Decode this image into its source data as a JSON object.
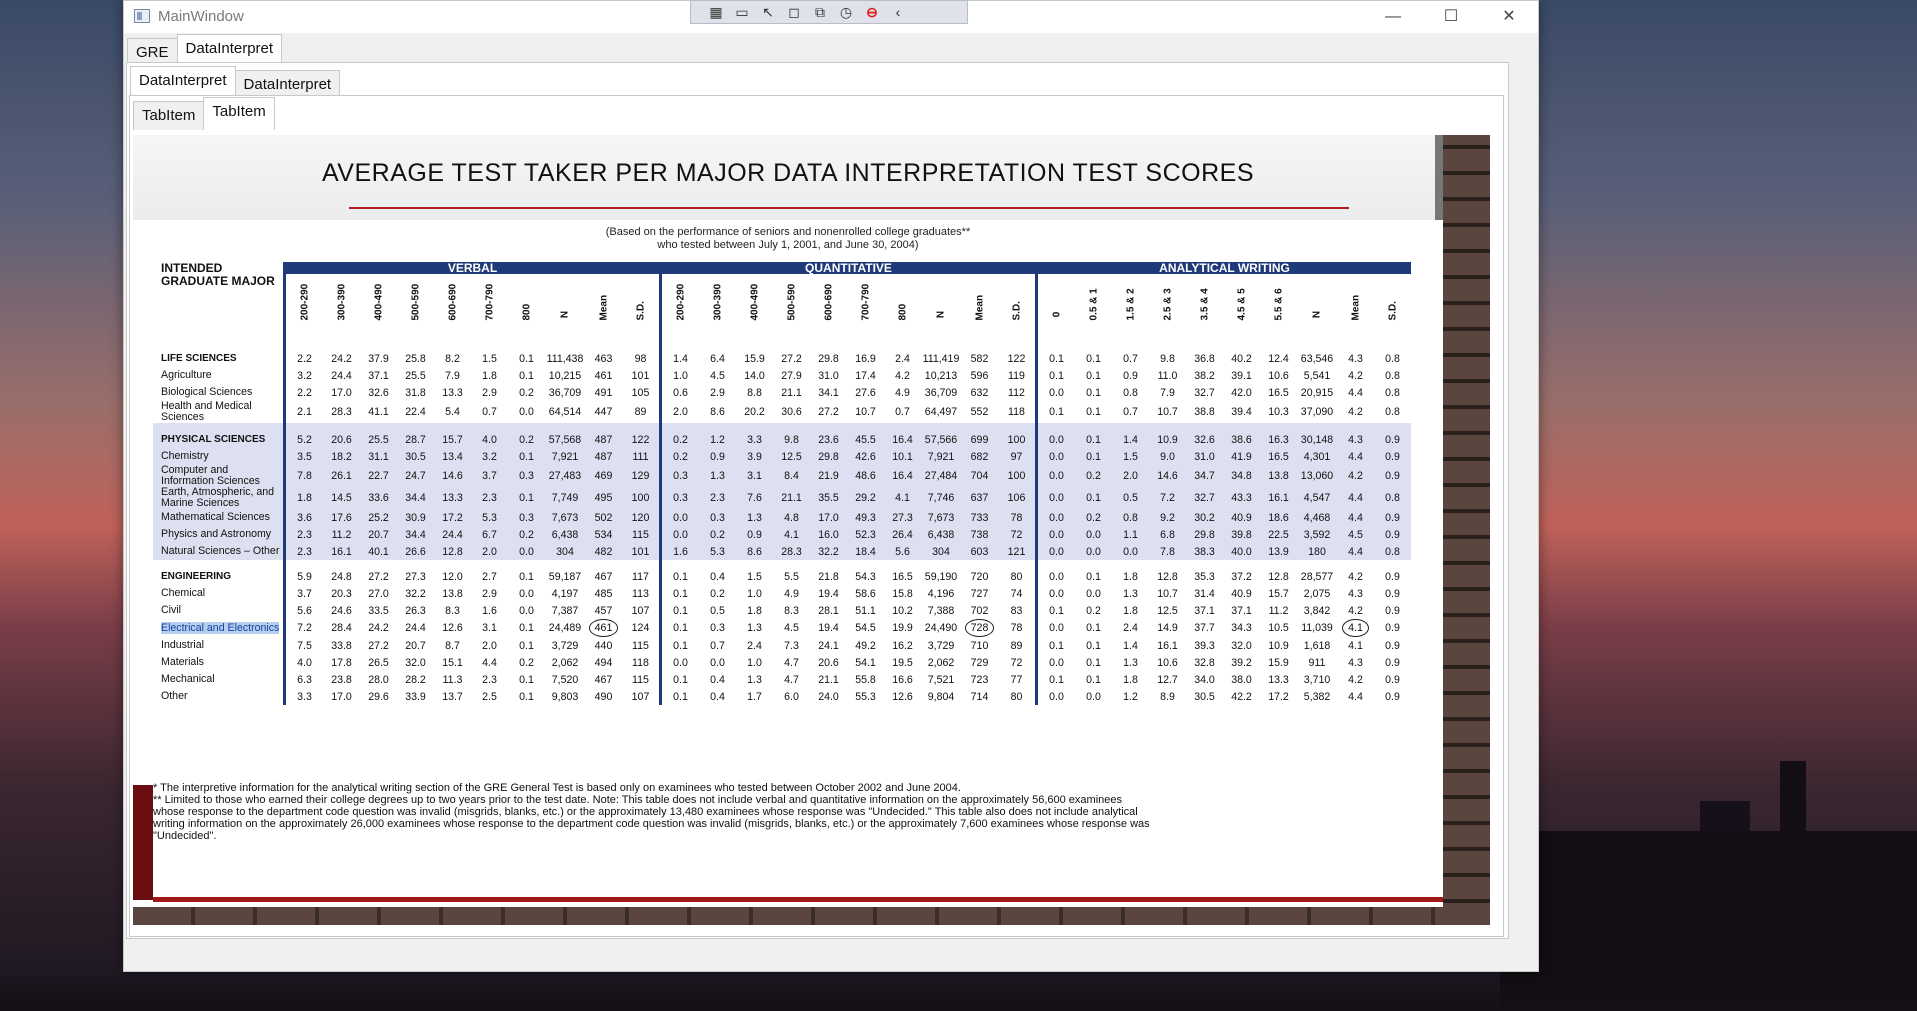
{
  "window": {
    "title": "MainWindow",
    "minimize": "—",
    "maximize": "☐",
    "close": "✕"
  },
  "toolbar": {
    "icons": [
      "capture-icon",
      "video-icon",
      "pointer-icon",
      "select-icon",
      "window-capture-icon",
      "timer-icon",
      "stop-icon",
      "collapse-icon"
    ]
  },
  "tabs_level1": [
    {
      "label": "GRE"
    },
    {
      "label": "DataInterpret"
    }
  ],
  "tabs_level2": [
    {
      "label": "DataInterpret"
    },
    {
      "label": "DataInterpret"
    }
  ],
  "tabs_level3": [
    {
      "label": "TabItem"
    },
    {
      "label": "TabItem"
    }
  ],
  "document": {
    "title": "AVERAGE TEST TAKER PER MAJOR DATA INTERPRETATION TEST SCORES",
    "subtitle_line1": "(Based on the performance of seniors and nonenrolled college graduates**",
    "subtitle_line2": "who tested between July 1, 2001, and June 30, 2004)",
    "major_header": "INTENDED GRADUATE MAJOR",
    "groups": [
      "VERBAL",
      "QUANTITATIVE",
      "ANALYTICAL WRITING"
    ],
    "verbal_cols": [
      "200-290",
      "300-390",
      "400-490",
      "500-590",
      "600-690",
      "700-790",
      "800",
      "N",
      "Mean",
      "S.D."
    ],
    "quant_cols": [
      "200-290",
      "300-390",
      "400-490",
      "500-590",
      "600-690",
      "700-790",
      "800",
      "N",
      "Mean",
      "S.D."
    ],
    "writing_cols": [
      "0",
      "0.5 & 1",
      "1.5 & 2",
      "2.5 & 3",
      "3.5 & 4",
      "4.5 & 5",
      "5.5 & 6",
      "N",
      "Mean",
      "S.D."
    ],
    "sections": [
      {
        "shade": false,
        "rows": [
          {
            "major": "LIFE SCIENCES",
            "bold": true,
            "v": [
              "2.2",
              "24.2",
              "37.9",
              "25.8",
              "8.2",
              "1.5",
              "0.1",
              "111,438",
              "463",
              "98"
            ],
            "q": [
              "1.4",
              "6.4",
              "15.9",
              "27.2",
              "29.8",
              "16.9",
              "2.4",
              "111,419",
              "582",
              "122"
            ],
            "w": [
              "0.1",
              "0.1",
              "0.7",
              "9.8",
              "36.8",
              "40.2",
              "12.4",
              "63,546",
              "4.3",
              "0.8"
            ]
          },
          {
            "major": "Agriculture",
            "v": [
              "3.2",
              "24.4",
              "37.1",
              "25.5",
              "7.9",
              "1.8",
              "0.1",
              "10,215",
              "461",
              "101"
            ],
            "q": [
              "1.0",
              "4.5",
              "14.0",
              "27.9",
              "31.0",
              "17.4",
              "4.2",
              "10,213",
              "596",
              "119"
            ],
            "w": [
              "0.1",
              "0.1",
              "0.9",
              "11.0",
              "38.2",
              "39.1",
              "10.6",
              "5,541",
              "4.2",
              "0.8"
            ]
          },
          {
            "major": "Biological Sciences",
            "v": [
              "2.2",
              "17.0",
              "32.6",
              "31.8",
              "13.3",
              "2.9",
              "0.2",
              "36,709",
              "491",
              "105"
            ],
            "q": [
              "0.6",
              "2.9",
              "8.8",
              "21.1",
              "34.1",
              "27.6",
              "4.9",
              "36,709",
              "632",
              "112"
            ],
            "w": [
              "0.0",
              "0.1",
              "0.8",
              "7.9",
              "32.7",
              "42.0",
              "16.5",
              "20,915",
              "4.4",
              "0.8"
            ]
          },
          {
            "major": "Health and Medical Sciences",
            "v": [
              "2.1",
              "28.3",
              "41.1",
              "22.4",
              "5.4",
              "0.7",
              "0.0",
              "64,514",
              "447",
              "89"
            ],
            "q": [
              "2.0",
              "8.6",
              "20.2",
              "30.6",
              "27.2",
              "10.7",
              "0.7",
              "64,497",
              "552",
              "118"
            ],
            "w": [
              "0.1",
              "0.1",
              "0.7",
              "10.7",
              "38.8",
              "39.4",
              "10.3",
              "37,090",
              "4.2",
              "0.8"
            ]
          }
        ]
      },
      {
        "shade": true,
        "rows": [
          {
            "major": "PHYSICAL SCIENCES",
            "bold": true,
            "v": [
              "5.2",
              "20.6",
              "25.5",
              "28.7",
              "15.7",
              "4.0",
              "0.2",
              "57,568",
              "487",
              "122"
            ],
            "q": [
              "0.2",
              "1.2",
              "3.3",
              "9.8",
              "23.6",
              "45.5",
              "16.4",
              "57,566",
              "699",
              "100"
            ],
            "w": [
              "0.0",
              "0.1",
              "1.4",
              "10.9",
              "32.6",
              "38.6",
              "16.3",
              "30,148",
              "4.3",
              "0.9"
            ]
          },
          {
            "major": "Chemistry",
            "v": [
              "3.5",
              "18.2",
              "31.1",
              "30.5",
              "13.4",
              "3.2",
              "0.1",
              "7,921",
              "487",
              "111"
            ],
            "q": [
              "0.2",
              "0.9",
              "3.9",
              "12.5",
              "29.8",
              "42.6",
              "10.1",
              "7,921",
              "682",
              "97"
            ],
            "w": [
              "0.0",
              "0.1",
              "1.5",
              "9.0",
              "31.0",
              "41.9",
              "16.5",
              "4,301",
              "4.4",
              "0.9"
            ]
          },
          {
            "major": "Computer and Information Sciences",
            "v": [
              "7.8",
              "26.1",
              "22.7",
              "24.7",
              "14.6",
              "3.7",
              "0.3",
              "27,483",
              "469",
              "129"
            ],
            "q": [
              "0.3",
              "1.3",
              "3.1",
              "8.4",
              "21.9",
              "48.6",
              "16.4",
              "27,484",
              "704",
              "100"
            ],
            "w": [
              "0.0",
              "0.2",
              "2.0",
              "14.6",
              "34.7",
              "34.8",
              "13.8",
              "13,060",
              "4.2",
              "0.9"
            ]
          },
          {
            "major": "Earth, Atmospheric, and Marine Sciences",
            "v": [
              "1.8",
              "14.5",
              "33.6",
              "34.4",
              "13.3",
              "2.3",
              "0.1",
              "7,749",
              "495",
              "100"
            ],
            "q": [
              "0.3",
              "2.3",
              "7.6",
              "21.1",
              "35.5",
              "29.2",
              "4.1",
              "7,746",
              "637",
              "106"
            ],
            "w": [
              "0.0",
              "0.1",
              "0.5",
              "7.2",
              "32.7",
              "43.3",
              "16.1",
              "4,547",
              "4.4",
              "0.8"
            ]
          },
          {
            "major": "Mathematical Sciences",
            "v": [
              "3.6",
              "17.6",
              "25.2",
              "30.9",
              "17.2",
              "5.3",
              "0.3",
              "7,673",
              "502",
              "120"
            ],
            "q": [
              "0.0",
              "0.3",
              "1.3",
              "4.8",
              "17.0",
              "49.3",
              "27.3",
              "7,673",
              "733",
              "78"
            ],
            "w": [
              "0.0",
              "0.2",
              "0.8",
              "9.2",
              "30.2",
              "40.9",
              "18.6",
              "4,468",
              "4.4",
              "0.9"
            ]
          },
          {
            "major": "Physics and Astronomy",
            "v": [
              "2.3",
              "11.2",
              "20.7",
              "34.4",
              "24.4",
              "6.7",
              "0.2",
              "6,438",
              "534",
              "115"
            ],
            "q": [
              "0.0",
              "0.2",
              "0.9",
              "4.1",
              "16.0",
              "52.3",
              "26.4",
              "6,438",
              "738",
              "72"
            ],
            "w": [
              "0.0",
              "0.0",
              "1.1",
              "6.8",
              "29.8",
              "39.8",
              "22.5",
              "3,592",
              "4.5",
              "0.9"
            ]
          },
          {
            "major": "Natural Sciences – Other",
            "v": [
              "2.3",
              "16.1",
              "40.1",
              "26.6",
              "12.8",
              "2.0",
              "0.0",
              "304",
              "482",
              "101"
            ],
            "q": [
              "1.6",
              "5.3",
              "8.6",
              "28.3",
              "32.2",
              "18.4",
              "5.6",
              "304",
              "603",
              "121"
            ],
            "w": [
              "0.0",
              "0.0",
              "0.0",
              "7.8",
              "38.3",
              "40.0",
              "13.9",
              "180",
              "4.4",
              "0.8"
            ]
          }
        ]
      },
      {
        "shade": false,
        "rows": [
          {
            "major": "ENGINEERING",
            "bold": true,
            "v": [
              "5.9",
              "24.8",
              "27.2",
              "27.3",
              "12.0",
              "2.7",
              "0.1",
              "59,187",
              "467",
              "117"
            ],
            "q": [
              "0.1",
              "0.4",
              "1.5",
              "5.5",
              "21.8",
              "54.3",
              "16.5",
              "59,190",
              "720",
              "80"
            ],
            "w": [
              "0.0",
              "0.1",
              "1.8",
              "12.8",
              "35.3",
              "37.2",
              "12.8",
              "28,577",
              "4.2",
              "0.9"
            ]
          },
          {
            "major": "Chemical",
            "v": [
              "3.7",
              "20.3",
              "27.0",
              "32.2",
              "13.8",
              "2.9",
              "0.0",
              "4,197",
              "485",
              "113"
            ],
            "q": [
              "0.1",
              "0.2",
              "1.0",
              "4.9",
              "19.4",
              "58.6",
              "15.8",
              "4,196",
              "727",
              "74"
            ],
            "w": [
              "0.0",
              "0.0",
              "1.3",
              "10.7",
              "31.4",
              "40.9",
              "15.7",
              "2,075",
              "4.3",
              "0.9"
            ]
          },
          {
            "major": "Civil",
            "v": [
              "5.6",
              "24.6",
              "33.5",
              "26.3",
              "8.3",
              "1.6",
              "0.0",
              "7,387",
              "457",
              "107"
            ],
            "q": [
              "0.1",
              "0.5",
              "1.8",
              "8.3",
              "28.1",
              "51.1",
              "10.2",
              "7,388",
              "702",
              "83"
            ],
            "w": [
              "0.1",
              "0.2",
              "1.8",
              "12.5",
              "37.1",
              "37.1",
              "11.2",
              "3,842",
              "4.2",
              "0.9"
            ]
          },
          {
            "major": "Electrical and Electronics",
            "selected": true,
            "v": [
              "7.2",
              "28.4",
              "24.2",
              "24.4",
              "12.6",
              "3.1",
              "0.1",
              "24,489",
              "461",
              "124"
            ],
            "q": [
              "0.1",
              "0.3",
              "1.3",
              "4.5",
              "19.4",
              "54.5",
              "19.9",
              "24,490",
              "728",
              "78"
            ],
            "w": [
              "0.0",
              "0.1",
              "2.4",
              "14.9",
              "37.7",
              "34.3",
              "10.5",
              "11,039",
              "4.1",
              "0.9"
            ]
          },
          {
            "major": "Industrial",
            "v": [
              "7.5",
              "33.8",
              "27.2",
              "20.7",
              "8.7",
              "2.0",
              "0.1",
              "3,729",
              "440",
              "115"
            ],
            "q": [
              "0.1",
              "0.7",
              "2.4",
              "7.3",
              "24.1",
              "49.2",
              "16.2",
              "3,729",
              "710",
              "89"
            ],
            "w": [
              "0.1",
              "0.1",
              "1.4",
              "16.1",
              "39.3",
              "32.0",
              "10.9",
              "1,618",
              "4.1",
              "0.9"
            ]
          },
          {
            "major": "Materials",
            "v": [
              "4.0",
              "17.8",
              "26.5",
              "32.0",
              "15.1",
              "4.4",
              "0.2",
              "2,062",
              "494",
              "118"
            ],
            "q": [
              "0.0",
              "0.0",
              "1.0",
              "4.7",
              "20.6",
              "54.1",
              "19.5",
              "2,062",
              "729",
              "72"
            ],
            "w": [
              "0.0",
              "0.1",
              "1.3",
              "10.6",
              "32.8",
              "39.2",
              "15.9",
              "911",
              "4.3",
              "0.9"
            ]
          },
          {
            "major": "Mechanical",
            "v": [
              "6.3",
              "23.8",
              "28.0",
              "28.2",
              "11.3",
              "2.3",
              "0.1",
              "7,520",
              "467",
              "115"
            ],
            "q": [
              "0.1",
              "0.4",
              "1.3",
              "4.7",
              "21.1",
              "55.8",
              "16.6",
              "7,521",
              "723",
              "77"
            ],
            "w": [
              "0.1",
              "0.1",
              "1.8",
              "12.7",
              "34.0",
              "38.0",
              "13.3",
              "3,710",
              "4.2",
              "0.9"
            ]
          },
          {
            "major": "Other",
            "v": [
              "3.3",
              "17.0",
              "29.6",
              "33.9",
              "13.7",
              "2.5",
              "0.1",
              "9,803",
              "490",
              "107"
            ],
            "q": [
              "0.1",
              "0.4",
              "1.7",
              "6.0",
              "24.0",
              "55.3",
              "12.6",
              "9,804",
              "714",
              "80"
            ],
            "w": [
              "0.0",
              "0.0",
              "1.2",
              "8.9",
              "30.5",
              "42.2",
              "17.2",
              "5,382",
              "4.4",
              "0.9"
            ]
          }
        ]
      }
    ],
    "footnote1": "* The interpretive information for the analytical writing section of the GRE General Test is based only on examinees who tested between October 2002 and June 2004.",
    "footnote2": "** Limited to those who earned their college degrees up to two years prior to the test date. Note: This table does not include verbal and quantitative information on the approximately 56,600 examinees whose response to the department code question was invalid (misgrids, blanks, etc.) or the approximately 13,480 examinees whose response was \"Undecided.\" This table also does not include analytical writing information on the approximately 26,000 examinees whose response to the department code question was invalid (misgrids, blanks, etc.) or the approximately 7,600 examinees whose response was \"Undecided\"."
  }
}
